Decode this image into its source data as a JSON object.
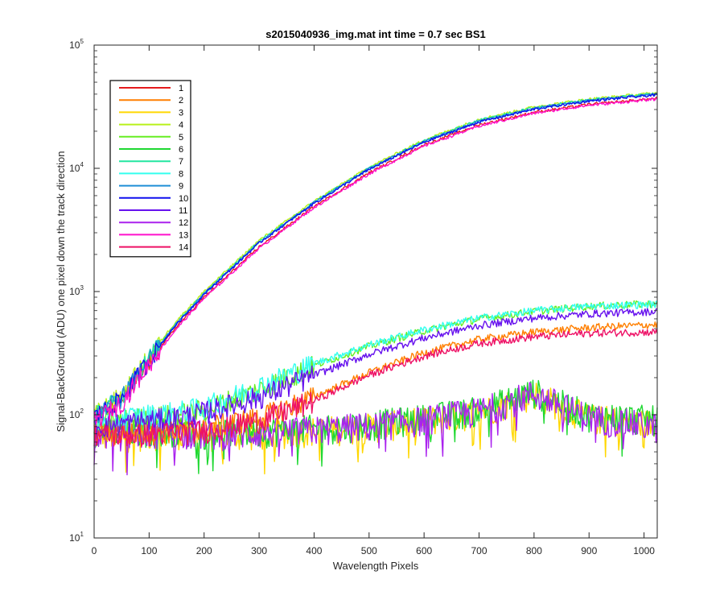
{
  "chart_data": {
    "type": "line",
    "title": "s2015040936_img.mat int time = 0.7 sec   BS1",
    "xlabel": "Wavelength Pixels",
    "ylabel": "Signal-BackGround (ADU) one pixel down the track direction",
    "xlim": [
      0,
      1024
    ],
    "ylim": [
      10,
      100000
    ],
    "yscale": "log",
    "grid": false,
    "legend_position": "top-left",
    "x_ticks": [
      0,
      100,
      200,
      300,
      400,
      500,
      600,
      700,
      800,
      900,
      1000
    ],
    "y_ticks": [
      {
        "base": "10",
        "exp": "1",
        "value": 10
      },
      {
        "base": "10",
        "exp": "2",
        "value": 100
      },
      {
        "base": "10",
        "exp": "3",
        "value": 1000
      },
      {
        "base": "10",
        "exp": "4",
        "value": 10000
      },
      {
        "base": "10",
        "exp": "5",
        "value": 100000
      }
    ],
    "x": [
      0,
      50,
      100,
      150,
      200,
      300,
      400,
      500,
      600,
      700,
      800,
      900,
      1024
    ],
    "series": [
      {
        "name": "1",
        "color": "#e41a1c",
        "group": "high",
        "values": [
          95,
          130,
          270,
          520,
          900,
          2300,
          4900,
          9200,
          15500,
          22500,
          28500,
          33000,
          37000
        ]
      },
      {
        "name": "2",
        "color": "#ff7f00",
        "group": "mid",
        "values": [
          75,
          70,
          72,
          75,
          80,
          95,
          140,
          220,
          320,
          410,
          470,
          510,
          540
        ]
      },
      {
        "name": "3",
        "color": "#ffd700",
        "group": "low",
        "values": [
          70,
          68,
          70,
          72,
          68,
          70,
          75,
          80,
          90,
          105,
          150,
          95,
          85
        ]
      },
      {
        "name": "4",
        "color": "#b8f01a",
        "group": "high",
        "values": [
          100,
          145,
          300,
          580,
          1000,
          2600,
          5400,
          10200,
          17000,
          25000,
          31500,
          36500,
          41000
        ]
      },
      {
        "name": "5",
        "color": "#66ee22",
        "group": "mid",
        "values": [
          85,
          90,
          95,
          100,
          110,
          160,
          250,
          360,
          480,
          600,
          690,
          760,
          800
        ]
      },
      {
        "name": "6",
        "color": "#1fd832",
        "group": "low",
        "values": [
          75,
          72,
          74,
          76,
          72,
          74,
          78,
          84,
          95,
          110,
          155,
          100,
          92
        ]
      },
      {
        "name": "7",
        "color": "#22e6a0",
        "group": "high",
        "values": [
          98,
          140,
          290,
          560,
          970,
          2550,
          5300,
          10000,
          16700,
          24500,
          31000,
          36000,
          40500
        ]
      },
      {
        "name": "8",
        "color": "#33ffee",
        "group": "mid",
        "values": [
          90,
          95,
          100,
          105,
          115,
          170,
          260,
          370,
          490,
          610,
          700,
          760,
          790
        ]
      },
      {
        "name": "9",
        "color": "#1f8fd6",
        "group": "high",
        "values": [
          97,
          138,
          285,
          550,
          960,
          2500,
          5250,
          9900,
          16500,
          24000,
          30500,
          35500,
          40000
        ]
      },
      {
        "name": "10",
        "color": "#1010ee",
        "group": "high",
        "values": [
          96,
          136,
          280,
          545,
          950,
          2480,
          5200,
          9800,
          16300,
          23800,
          30200,
          35200,
          39500
        ]
      },
      {
        "name": "11",
        "color": "#6611ee",
        "group": "mid",
        "values": [
          80,
          85,
          90,
          95,
          105,
          140,
          210,
          310,
          420,
          530,
          610,
          660,
          690
        ]
      },
      {
        "name": "12",
        "color": "#aa22ee",
        "group": "low",
        "values": [
          72,
          70,
          72,
          74,
          70,
          72,
          76,
          82,
          92,
          108,
          150,
          96,
          80
        ]
      },
      {
        "name": "13",
        "color": "#ff11cc",
        "group": "high",
        "values": [
          90,
          125,
          260,
          500,
          880,
          2250,
          4800,
          9000,
          15200,
          22000,
          28000,
          32500,
          36500
        ]
      },
      {
        "name": "14",
        "color": "#ee1166",
        "group": "mid",
        "values": [
          70,
          68,
          70,
          72,
          74,
          90,
          130,
          210,
          300,
          380,
          430,
          460,
          470
        ]
      }
    ]
  }
}
